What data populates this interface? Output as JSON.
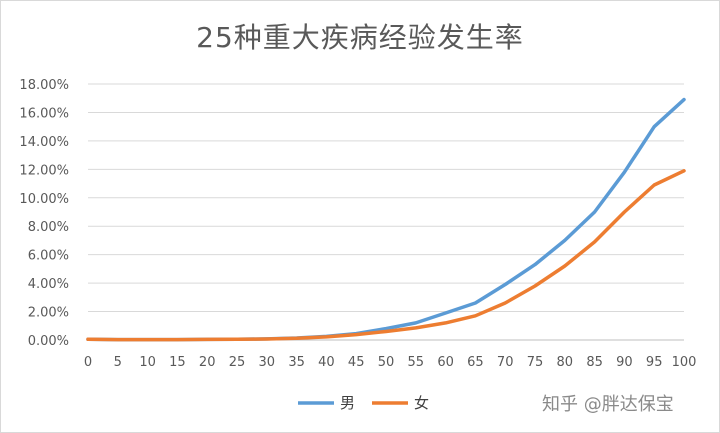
{
  "chart_data": {
    "type": "line",
    "title": "25种重大疾病经验发生率",
    "xlabel": "",
    "ylabel": "",
    "x": [
      0,
      5,
      10,
      15,
      20,
      25,
      30,
      35,
      40,
      45,
      50,
      55,
      60,
      65,
      70,
      75,
      80,
      85,
      90,
      95,
      100
    ],
    "xlim": [
      0,
      100
    ],
    "ylim": [
      0,
      18
    ],
    "y_unit": "%",
    "y_ticks": [
      "0.00%",
      "2.00%",
      "4.00%",
      "6.00%",
      "8.00%",
      "10.00%",
      "12.00%",
      "14.00%",
      "16.00%",
      "18.00%"
    ],
    "x_ticks": [
      "0",
      "5",
      "10",
      "15",
      "20",
      "25",
      "30",
      "35",
      "40",
      "45",
      "50",
      "55",
      "60",
      "65",
      "70",
      "75",
      "80",
      "85",
      "90",
      "95",
      "100"
    ],
    "grid": true,
    "legend_position": "bottom",
    "series": [
      {
        "name": "男",
        "color": "#5b9bd5",
        "values": [
          0.05,
          0.03,
          0.03,
          0.03,
          0.04,
          0.05,
          0.08,
          0.14,
          0.25,
          0.45,
          0.8,
          1.2,
          1.9,
          2.6,
          3.9,
          5.3,
          7.0,
          9.0,
          11.8,
          15.0,
          16.9
        ]
      },
      {
        "name": "女",
        "color": "#ed7d31",
        "values": [
          0.05,
          0.03,
          0.03,
          0.03,
          0.04,
          0.05,
          0.07,
          0.12,
          0.22,
          0.38,
          0.6,
          0.85,
          1.2,
          1.7,
          2.6,
          3.8,
          5.2,
          6.9,
          9.0,
          10.9,
          11.9
        ]
      }
    ]
  },
  "watermark": "知乎 @胖达保宝"
}
